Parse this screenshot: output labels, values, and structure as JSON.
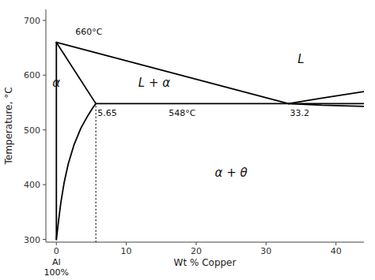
{
  "chart_data": {
    "type": "line",
    "xlabel": "Wt % Copper",
    "ylabel": "Temperature, °C",
    "xlim": [
      -1.5,
      44
    ],
    "ylim": [
      295,
      720
    ],
    "xticks": [
      0,
      10,
      20,
      30,
      40
    ],
    "yticks": [
      300,
      400,
      500,
      600,
      700
    ],
    "grid": false,
    "series": [
      {
        "color": "black",
        "line_style": "solid",
        "x": [
          0,
          0
        ],
        "values": [
          300,
          660
        ]
      },
      {
        "color": "black",
        "line_style": "solid",
        "x": [
          0.0,
          0.15,
          0.35,
          0.65,
          1.1,
          1.7,
          2.5,
          3.5,
          4.5,
          5.3,
          5.65
        ],
        "values": [
          300,
          316,
          338,
          368,
          403,
          438,
          472,
          503,
          526,
          542,
          548
        ]
      },
      {
        "color": "black",
        "line_style": "solid",
        "x": [
          0,
          5.65
        ],
        "values": [
          660,
          548
        ]
      },
      {
        "color": "black",
        "line_style": "solid",
        "x": [
          0,
          33.2
        ],
        "values": [
          660,
          548
        ]
      },
      {
        "color": "black",
        "line_style": "solid",
        "x": [
          5.65,
          33.2
        ],
        "values": [
          548,
          548
        ]
      },
      {
        "color": "black",
        "line_style": "solid",
        "x": [
          33.2,
          38,
          44
        ],
        "values": [
          548,
          558,
          570
        ]
      },
      {
        "color": "black",
        "line_style": "solid",
        "x": [
          33.2,
          38,
          44
        ],
        "values": [
          548,
          545,
          543
        ]
      },
      {
        "color": "black",
        "line_style": "solid",
        "x": [
          33.2,
          44
        ],
        "values": [
          548,
          548
        ]
      },
      {
        "color": "black",
        "line_style": "dotted",
        "x": [
          5.65,
          5.65
        ],
        "values": [
          295,
          548
        ]
      }
    ],
    "annotations": [
      {
        "text": "660°C",
        "x": 2.5,
        "y": 668
      },
      {
        "text": "α",
        "x": -0.8,
        "y": 585
      },
      {
        "text": "L + α",
        "x": 14,
        "y": 585
      },
      {
        "text": "L",
        "x": 35,
        "y": 628
      },
      {
        "text": "α + θ",
        "x": 25,
        "y": 420
      },
      {
        "text": "548°C",
        "x": 18,
        "y": 540
      },
      {
        "text": "5.65",
        "x": 5.65,
        "y": 540
      },
      {
        "text": "33.2",
        "x": 33.2,
        "y": 540
      },
      {
        "text": "Al\n100%",
        "x": 0,
        "y": 268
      }
    ]
  }
}
